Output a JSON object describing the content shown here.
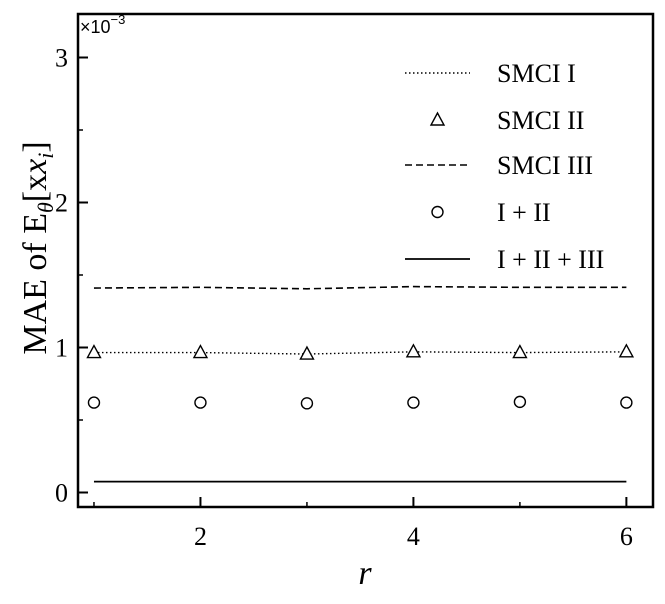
{
  "chart_data": {
    "type": "line",
    "xlabel": "r",
    "ylabel": "MAE of E",
    "ylabel_sub": "θ",
    "ylabel_arg": "[x",
    "ylabel_arg_sub": "i",
    "ylabel_close": "]",
    "y_exponent": "×10",
    "y_exponent_power": "−3",
    "xlim": [
      0.85,
      6.25
    ],
    "ylim": [
      -0.1,
      3.3
    ],
    "x_ticks": [
      2,
      4,
      6
    ],
    "y_ticks": [
      0,
      1,
      2,
      3
    ],
    "grid": false,
    "legend_position": "top-right",
    "x": [
      1,
      2,
      3,
      4,
      5,
      6
    ],
    "series": [
      {
        "name": "SMCI I",
        "style": "dotted-line",
        "values": [
          0.965,
          0.965,
          0.955,
          0.97,
          0.965,
          0.97
        ]
      },
      {
        "name": "SMCI II",
        "style": "triangle-marker",
        "values": [
          0.965,
          0.965,
          0.955,
          0.97,
          0.965,
          0.97
        ]
      },
      {
        "name": "SMCI III",
        "style": "dashed-line",
        "values": [
          1.41,
          1.415,
          1.405,
          1.42,
          1.415,
          1.415
        ]
      },
      {
        "name": "I + II",
        "style": "circle-marker",
        "values": [
          0.62,
          0.62,
          0.615,
          0.62,
          0.625,
          0.62
        ]
      },
      {
        "name": "I + II + III",
        "style": "solid-line",
        "values": [
          0.075,
          0.075,
          0.075,
          0.075,
          0.075,
          0.075
        ]
      }
    ]
  }
}
